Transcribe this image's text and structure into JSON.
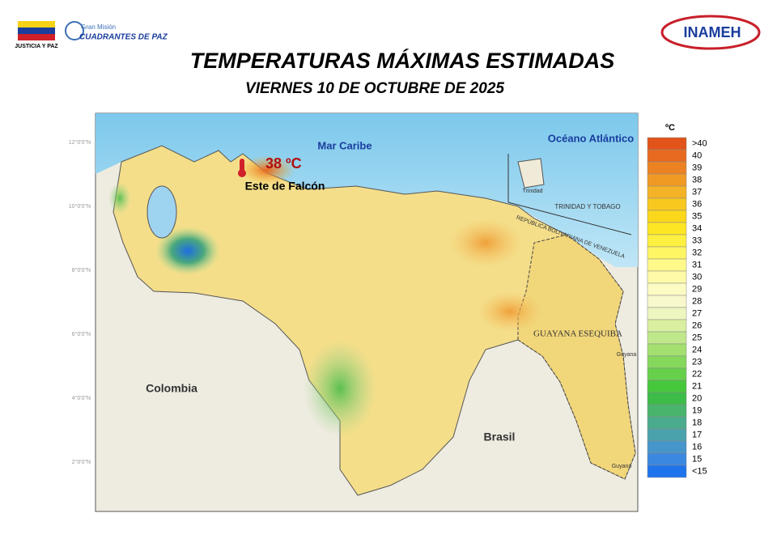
{
  "header": {
    "left_logo_caption": "JUSTICIA Y PAZ",
    "mission_small": "Gran Misión",
    "mission_big": "CUADRANTES DE PAZ",
    "right_logo": "INAMEH",
    "title": "TEMPERATURAS MÁXIMAS ESTIMADAS",
    "subtitle": "VIERNES 10 DE OCTUBRE DE 2025"
  },
  "map": {
    "labels": {
      "sea": "Mar Caribe",
      "ocean": "Océano Atlántico",
      "max_value": "38 ºC",
      "max_place": "Este de Falcón",
      "colombia": "Colombia",
      "brasil": "Brasil",
      "esequiba": "GUAYANA ESEQUIBA",
      "tt": "TRINIDAD Y TOBAGO",
      "rbv": "REPÚBLICA BOLIVARIANA DE VENEZUELA",
      "trinidad": "Trinidad",
      "guyana_n": "Guyana",
      "guyana_s": "Guyana"
    },
    "lat_labels": [
      "12°0'0\"N",
      "10°0'0\"N",
      "8°0'0\"N",
      "6°0'0\"N",
      "4°0'0\"N",
      "2°0'0\"N"
    ]
  },
  "legend": {
    "unit": "ºC",
    "items": [
      {
        "label": ">40",
        "color": "#e2541a"
      },
      {
        "label": "40",
        "color": "#e86a1e"
      },
      {
        "label": "39",
        "color": "#ec8222"
      },
      {
        "label": "38",
        "color": "#f09a24"
      },
      {
        "label": "37",
        "color": "#f4b226"
      },
      {
        "label": "36",
        "color": "#f8c81e"
      },
      {
        "label": "35",
        "color": "#fbd81c"
      },
      {
        "label": "34",
        "color": "#fde624"
      },
      {
        "label": "33",
        "color": "#fef040"
      },
      {
        "label": "32",
        "color": "#fff664"
      },
      {
        "label": "31",
        "color": "#fff98a"
      },
      {
        "label": "30",
        "color": "#fffaa8"
      },
      {
        "label": "29",
        "color": "#fdfbc4"
      },
      {
        "label": "28",
        "color": "#f8f8cc"
      },
      {
        "label": "27",
        "color": "#eef6c0"
      },
      {
        "label": "26",
        "color": "#d8f0a0"
      },
      {
        "label": "25",
        "color": "#bfe88a"
      },
      {
        "label": "24",
        "color": "#a4e070"
      },
      {
        "label": "23",
        "color": "#86d85c"
      },
      {
        "label": "22",
        "color": "#66d04a"
      },
      {
        "label": "21",
        "color": "#46c83c"
      },
      {
        "label": "20",
        "color": "#3cbc48"
      },
      {
        "label": "19",
        "color": "#48b46c"
      },
      {
        "label": "18",
        "color": "#4aac8c"
      },
      {
        "label": "17",
        "color": "#4aa2ac"
      },
      {
        "label": "16",
        "color": "#4696cc"
      },
      {
        "label": "15",
        "color": "#3a88e0"
      },
      {
        "label": "<15",
        "color": "#1e74ec"
      }
    ]
  }
}
